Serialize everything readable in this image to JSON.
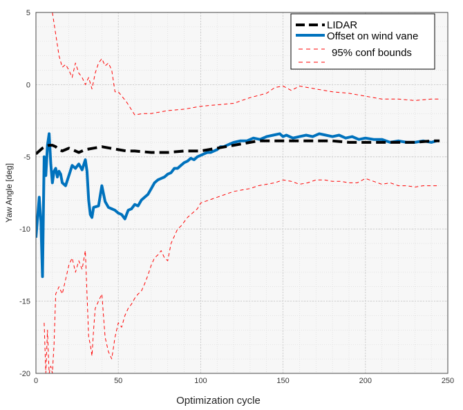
{
  "chart_data": {
    "type": "line",
    "xlabel": "Optimization  cycle",
    "ylabel": "Yaw Angle [deg]",
    "xlim": [
      0,
      250
    ],
    "ylim": [
      -20,
      5
    ],
    "xticks": [
      0,
      50,
      100,
      150,
      200,
      250
    ],
    "yticks": [
      5,
      0,
      -5,
      -10,
      -15,
      -20
    ],
    "grid": true,
    "legend_position": "top-right",
    "colors": {
      "lidar": "#000000",
      "offset": "#0072BD",
      "bounds": "#FF0000"
    },
    "series": [
      {
        "name": "LIDAR",
        "style": "dashed-thick",
        "x": [
          0,
          2,
          4,
          6,
          8,
          10,
          12,
          14,
          16,
          18,
          20,
          22,
          24,
          26,
          28,
          30,
          35,
          40,
          45,
          50,
          55,
          60,
          70,
          80,
          90,
          100,
          105,
          110,
          115,
          120,
          125,
          130,
          135,
          140,
          145,
          150,
          155,
          160,
          170,
          180,
          190,
          200,
          210,
          220,
          230,
          240,
          245
        ],
        "y": [
          -4.8,
          -4.6,
          -4.4,
          -4.3,
          -4.2,
          -4.2,
          -4.3,
          -4.5,
          -4.6,
          -4.5,
          -4.4,
          -4.5,
          -4.6,
          -4.7,
          -4.6,
          -4.5,
          -4.4,
          -4.3,
          -4.4,
          -4.5,
          -4.6,
          -4.6,
          -4.7,
          -4.7,
          -4.6,
          -4.6,
          -4.5,
          -4.4,
          -4.3,
          -4.2,
          -4.1,
          -4.0,
          -3.9,
          -3.9,
          -3.9,
          -3.9,
          -3.9,
          -3.9,
          -3.9,
          -3.9,
          -4.0,
          -4.0,
          -4.0,
          -4.0,
          -4.0,
          -3.9,
          -3.9
        ]
      },
      {
        "name": "Offset on wind vane",
        "style": "solid-thick",
        "x": [
          0,
          2,
          3,
          4,
          5,
          6,
          7,
          8,
          9,
          10,
          11,
          12,
          13,
          14,
          15,
          16,
          18,
          20,
          22,
          24,
          26,
          28,
          30,
          31,
          32,
          33,
          34,
          35,
          38,
          40,
          42,
          44,
          46,
          48,
          50,
          52,
          54,
          56,
          58,
          60,
          62,
          64,
          66,
          68,
          70,
          72,
          74,
          76,
          78,
          80,
          82,
          84,
          86,
          88,
          90,
          92,
          94,
          96,
          98,
          100,
          102,
          104,
          106,
          108,
          110,
          112,
          114,
          116,
          118,
          120,
          124,
          128,
          132,
          136,
          140,
          144,
          148,
          150,
          152,
          156,
          160,
          164,
          168,
          172,
          176,
          180,
          184,
          188,
          192,
          196,
          200,
          205,
          210,
          215,
          220,
          225,
          230,
          235,
          240,
          243
        ],
        "y": [
          -10.6,
          -7.8,
          -9.5,
          -13.3,
          -5.0,
          -6.3,
          -4.2,
          -3.4,
          -5.5,
          -6.8,
          -6.0,
          -5.8,
          -6.4,
          -6.0,
          -6.2,
          -6.8,
          -7.0,
          -6.3,
          -5.6,
          -5.8,
          -5.5,
          -5.9,
          -5.2,
          -6.0,
          -8.0,
          -9.0,
          -9.2,
          -8.5,
          -8.4,
          -7.0,
          -8.1,
          -8.5,
          -8.6,
          -8.7,
          -8.9,
          -9.0,
          -9.3,
          -8.7,
          -8.6,
          -8.3,
          -8.4,
          -8.0,
          -7.8,
          -7.6,
          -7.2,
          -6.8,
          -6.6,
          -6.5,
          -6.4,
          -6.2,
          -6.1,
          -5.8,
          -5.8,
          -5.6,
          -5.4,
          -5.3,
          -5.1,
          -5.2,
          -5.0,
          -4.9,
          -4.8,
          -4.7,
          -4.7,
          -4.6,
          -4.5,
          -4.3,
          -4.3,
          -4.2,
          -4.1,
          -4.0,
          -3.9,
          -3.9,
          -3.7,
          -3.8,
          -3.6,
          -3.5,
          -3.4,
          -3.6,
          -3.5,
          -3.7,
          -3.6,
          -3.5,
          -3.6,
          -3.4,
          -3.5,
          -3.6,
          -3.5,
          -3.7,
          -3.6,
          -3.8,
          -3.7,
          -3.8,
          -3.8,
          -4.0,
          -3.9,
          -4.0,
          -4.0,
          -3.9,
          -4.0,
          -3.9
        ]
      },
      {
        "name": "95% conf bounds",
        "style": "dashed-thin",
        "x": [
          10,
          12,
          14,
          16,
          18,
          20,
          22,
          24,
          26,
          28,
          30,
          32,
          34,
          36,
          38,
          40,
          42,
          44,
          46,
          48,
          50,
          55,
          60,
          65,
          70,
          80,
          90,
          100,
          110,
          120,
          130,
          140,
          145,
          150,
          155,
          160,
          170,
          180,
          190,
          200,
          210,
          220,
          230,
          240,
          245
        ],
        "y": [
          5,
          3.5,
          2.0,
          1.2,
          1.4,
          1.0,
          0.5,
          1.5,
          0.8,
          0.5,
          0,
          0.5,
          -0.3,
          0.8,
          1.5,
          1.8,
          1.3,
          1.5,
          1.0,
          -0.5,
          -0.5,
          -1.2,
          -2.1,
          -2.0,
          -2.0,
          -1.8,
          -1.7,
          -1.5,
          -1.4,
          -1.3,
          -0.9,
          -0.6,
          -0.2,
          -0.1,
          -0.4,
          -0.1,
          -0.3,
          -0.5,
          -0.6,
          -0.8,
          -1.0,
          -1.0,
          -1.1,
          -1.0,
          -1.0
        ]
      },
      {
        "name": "",
        "style": "dashed-thin",
        "x": [
          5,
          6,
          7,
          8,
          9,
          10,
          11,
          12,
          14,
          16,
          18,
          20,
          22,
          24,
          26,
          28,
          30,
          32,
          33,
          34,
          35,
          36,
          38,
          40,
          42,
          44,
          46,
          48,
          50,
          52,
          54,
          56,
          58,
          60,
          62,
          64,
          66,
          68,
          70,
          72,
          74,
          76,
          78,
          80,
          82,
          84,
          86,
          88,
          90,
          92,
          94,
          96,
          98,
          100,
          105,
          110,
          115,
          120,
          125,
          130,
          135,
          140,
          145,
          150,
          155,
          160,
          165,
          170,
          175,
          180,
          185,
          190,
          195,
          200,
          205,
          210,
          215,
          220,
          225,
          230,
          235,
          240,
          245
        ],
        "y": [
          -16.5,
          -20,
          -17,
          -20,
          -19.5,
          -20,
          -18,
          -14.5,
          -14.0,
          -14.5,
          -13.5,
          -12.5,
          -12.0,
          -13.0,
          -12.2,
          -12.8,
          -11.5,
          -17.5,
          -18.0,
          -18.8,
          -17.0,
          -15.5,
          -15.0,
          -14.5,
          -17.5,
          -18.5,
          -19.0,
          -17.5,
          -16.5,
          -16.8,
          -16.0,
          -15.5,
          -15.2,
          -14.8,
          -14.5,
          -14.3,
          -13.8,
          -13.2,
          -12.5,
          -12.0,
          -11.8,
          -11.5,
          -12.0,
          -12.2,
          -11.0,
          -10.5,
          -10.0,
          -9.8,
          -9.5,
          -9.2,
          -9.0,
          -8.8,
          -8.6,
          -8.2,
          -8.0,
          -7.8,
          -7.6,
          -7.4,
          -7.3,
          -7.2,
          -7.0,
          -6.9,
          -6.8,
          -6.6,
          -6.7,
          -6.9,
          -6.8,
          -6.6,
          -6.6,
          -6.7,
          -6.7,
          -6.8,
          -6.8,
          -6.5,
          -6.7,
          -6.9,
          -6.8,
          -7.0,
          -7.0,
          -7.1,
          -7.0,
          -7.0,
          -7.0
        ]
      }
    ]
  }
}
